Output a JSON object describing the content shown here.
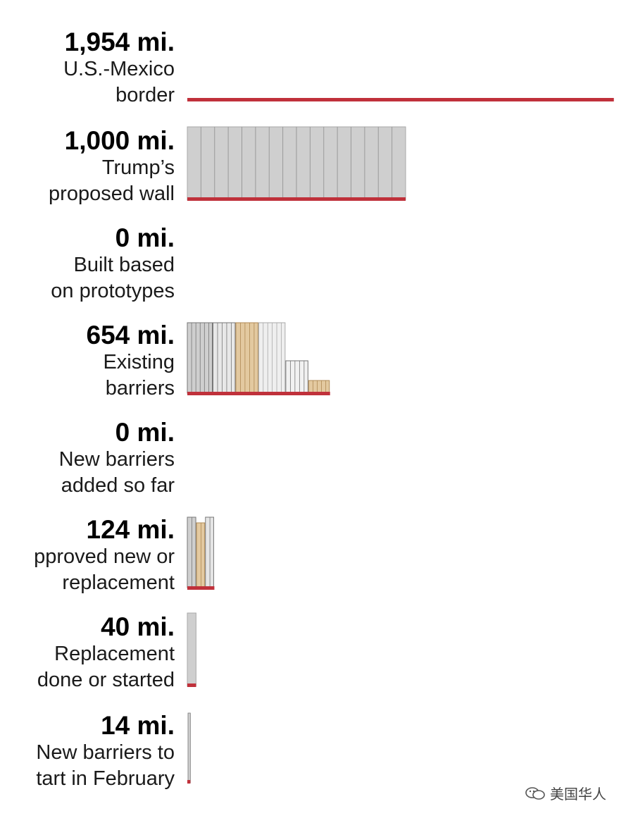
{
  "chart_data": {
    "type": "bar",
    "orientation": "horizontal",
    "unit": "mi.",
    "rows": [
      {
        "value": 1954,
        "value_label": "1,954 mi.",
        "desc": [
          "U.S.-Mexico",
          "border"
        ],
        "style": "line"
      },
      {
        "value": 1000,
        "value_label": "1,000 mi.",
        "desc": [
          "Trump’s",
          "proposed wall"
        ],
        "style": "panels"
      },
      {
        "value": 0,
        "value_label": "0 mi.",
        "desc": [
          "Built based",
          "on prototypes"
        ],
        "style": "none"
      },
      {
        "value": 654,
        "value_label": "654 mi.",
        "desc": [
          "Existing",
          "barriers"
        ],
        "style": "mixed"
      },
      {
        "value": 0,
        "value_label": "0 mi.",
        "desc": [
          "New barriers",
          "added so far"
        ],
        "style": "none"
      },
      {
        "value": 124,
        "value_label": "124 mi.",
        "desc": [
          "pproved new or",
          "replacement"
        ],
        "style": "mixed"
      },
      {
        "value": 40,
        "value_label": "40 mi.",
        "desc": [
          "Replacement",
          "done or started"
        ],
        "style": "panels"
      },
      {
        "value": 14,
        "value_label": "14 mi.",
        "desc": [
          "New barriers to",
          "tart in February"
        ],
        "style": "thin"
      }
    ],
    "colors": {
      "baseline": "#c0313b",
      "panel": "#cfcfcf",
      "panel_stroke": "#a9a9a9",
      "post": "#777777",
      "tan": "#e3c9a0",
      "tan_stroke": "#b08a55"
    }
  },
  "watermark": {
    "text": "美国华人",
    "icon": "wechat-icon"
  }
}
